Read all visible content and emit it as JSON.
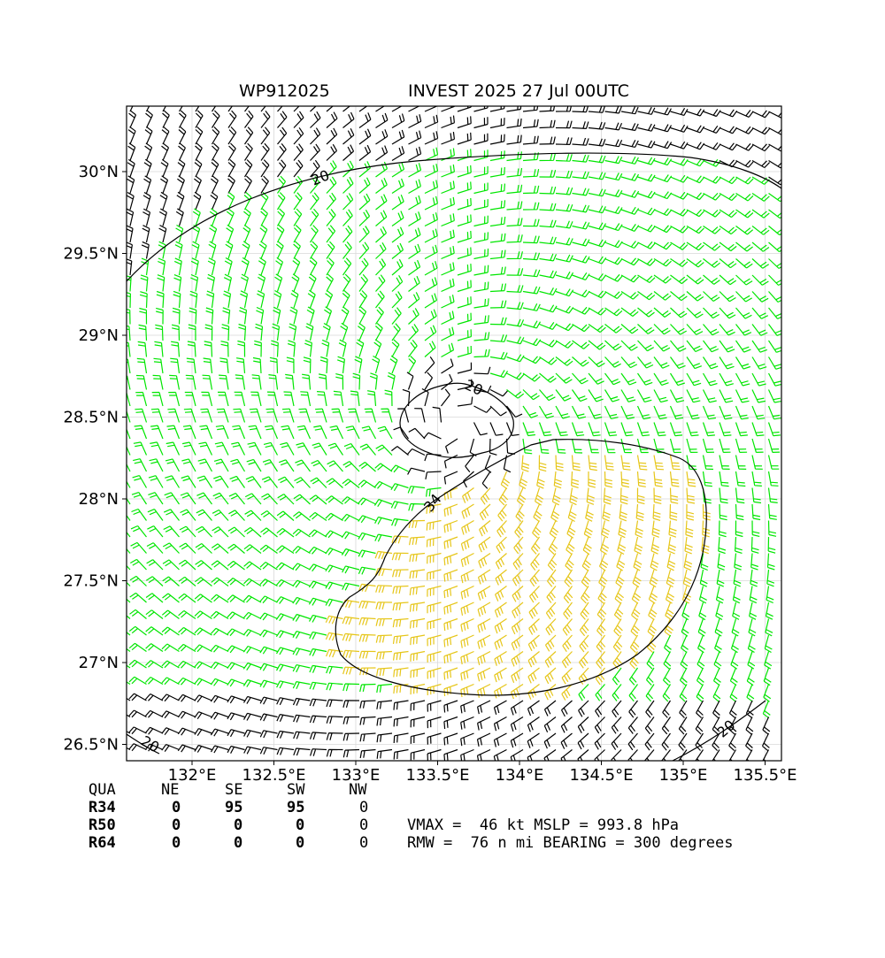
{
  "header": {
    "storm_id": "WP912025",
    "storm_info": "INVEST 2025 27 Jul 00UTC"
  },
  "chart_data": {
    "type": "wind-barb map",
    "x_ticks": [
      "132°E",
      "132.5°E",
      "133°E",
      "133.5°E",
      "134°E",
      "134.5°E",
      "135°E",
      "135.5°E"
    ],
    "x_tick_values": [
      132,
      132.5,
      133,
      133.5,
      134,
      134.5,
      135,
      135.5
    ],
    "y_ticks": [
      "26.5°N",
      "27°N",
      "27.5°N",
      "28°N",
      "28.5°N",
      "29°N",
      "29.5°N",
      "30°N"
    ],
    "y_tick_values": [
      26.5,
      27,
      27.5,
      28,
      28.5,
      29,
      29.5,
      30
    ],
    "xlim": [
      131.6,
      135.6
    ],
    "ylim": [
      26.4,
      30.4
    ],
    "grid": true,
    "center": {
      "lon": 133.6,
      "lat": 28.45
    },
    "contours": [
      {
        "label": "20",
        "color": "#000000"
      },
      {
        "label": "20",
        "color": "#000000"
      },
      {
        "label": "20",
        "color": "#000000"
      },
      {
        "label": "20",
        "color": "#000000"
      },
      {
        "label": "34",
        "color": "#000000"
      }
    ],
    "barb_colors": {
      "below_20kt": "#000000",
      "20_to_34kt": "#00e600",
      "34_to_50kt": "#e6c619"
    }
  },
  "table": {
    "header": [
      "QUA",
      "NE",
      "SE",
      "SW",
      "NW"
    ],
    "rows": [
      {
        "label": "R34",
        "values": [
          "0",
          "95",
          "95",
          "0"
        ]
      },
      {
        "label": "R50",
        "values": [
          "0",
          "0",
          "0",
          "0"
        ]
      },
      {
        "label": "R64",
        "values": [
          "0",
          "0",
          "0",
          "0"
        ]
      }
    ]
  },
  "stats": {
    "line1": "VMAX =  46 kt MSLP = 993.8 hPa",
    "line2": "RMW =  76 n mi BEARING = 300 degrees"
  }
}
